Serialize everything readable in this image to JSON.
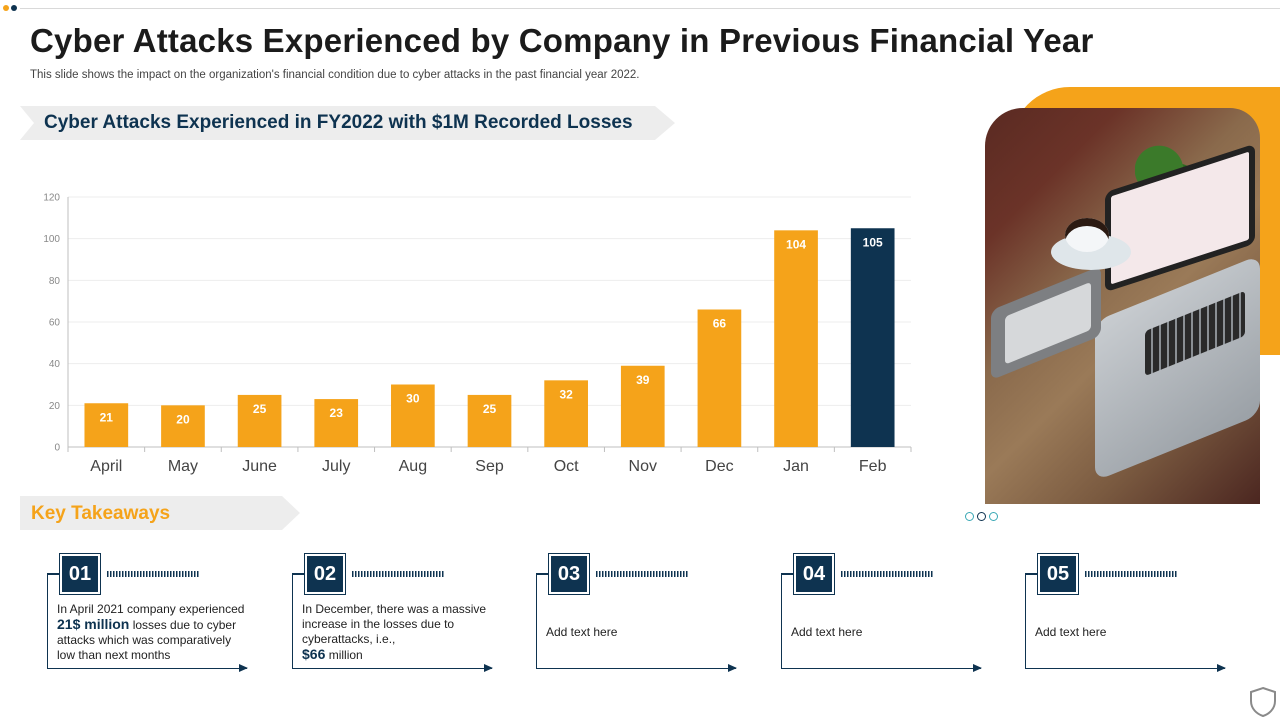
{
  "title": "Cyber Attacks Experienced by Company in Previous Financial Year",
  "subtitle": "This slide shows the impact on the organization's financial condition due to cyber attacks in the past financial year 2022.",
  "chart_banner": "Cyber Attacks Experienced in FY2022 with $1M Recorded Losses",
  "colors": {
    "accent": "#f5a31a",
    "navy": "#0e3350",
    "teal": "#3aa8b5"
  },
  "chart_data": {
    "type": "bar",
    "categories": [
      "April",
      "May",
      "June",
      "July",
      "Aug",
      "Sep",
      "Oct",
      "Nov",
      "Dec",
      "Jan",
      "Feb"
    ],
    "values": [
      21,
      20,
      25,
      23,
      30,
      25,
      32,
      39,
      66,
      104,
      105
    ],
    "bar_colors": [
      "#f5a31a",
      "#f5a31a",
      "#f5a31a",
      "#f5a31a",
      "#f5a31a",
      "#f5a31a",
      "#f5a31a",
      "#f5a31a",
      "#f5a31a",
      "#f5a31a",
      "#0e3350"
    ],
    "ylim": [
      0,
      120
    ],
    "yticks": [
      0,
      20,
      40,
      60,
      80,
      100,
      120
    ],
    "grid": true,
    "data_labels": true
  },
  "key_takeaways": {
    "heading": "Key Takeaways",
    "cards": [
      {
        "num": "01",
        "pre": "In April 2021 company experienced",
        "highlight": "21$ million",
        "post": "losses due to cyber attacks which was comparatively low than next months"
      },
      {
        "num": "02",
        "pre": "In December, there was a massive increase in the losses due to cyberattacks, i.e.,",
        "highlight": "$66",
        "post": "million"
      },
      {
        "num": "03",
        "text": "Add text here"
      },
      {
        "num": "04",
        "text": "Add text here"
      },
      {
        "num": "05",
        "text": "Add text here"
      }
    ]
  },
  "icons": {
    "photo": "laptop-desk-photo",
    "shield": "shield-icon"
  }
}
